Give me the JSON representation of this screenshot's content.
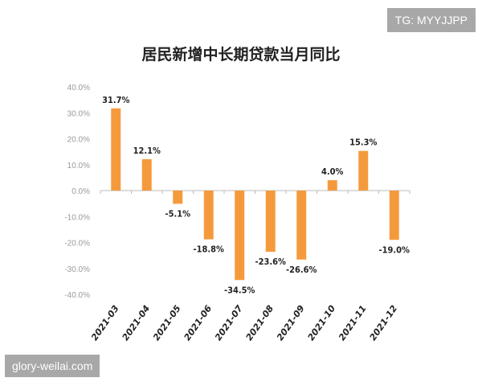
{
  "watermarks": {
    "top_right": "TG: MYYJJPP",
    "bottom_left": "glory-weilai.com"
  },
  "colors": {
    "bar": "#f59a3c",
    "axis": "#999999",
    "text": "#222222"
  },
  "chart_data": {
    "type": "bar",
    "title": "居民新增中长期贷款当月同比",
    "xlabel": "",
    "ylabel": "",
    "categories": [
      "2021-03",
      "2021-04",
      "2021-05",
      "2021-06",
      "2021-07",
      "2021-08",
      "2021-09",
      "2021-10",
      "2021-11",
      "2021-12"
    ],
    "values": [
      31.7,
      12.1,
      -5.1,
      -18.8,
      -34.5,
      -23.6,
      -26.6,
      4.0,
      15.3,
      -19.0
    ],
    "value_labels": [
      "31.7%",
      "12.1%",
      "-5.1%",
      "-18.8%",
      "-34.5%",
      "-23.6%",
      "-26.6%",
      "4.0%",
      "15.3%",
      "-19.0%"
    ],
    "yticks": [
      "40.0%",
      "30.0%",
      "20.0%",
      "10.0%",
      "0.0%",
      "-10.0%",
      "-20.0%",
      "-30.0%",
      "-40.0%"
    ],
    "ylim": [
      -40,
      40
    ],
    "grid": false,
    "legend": "none"
  }
}
